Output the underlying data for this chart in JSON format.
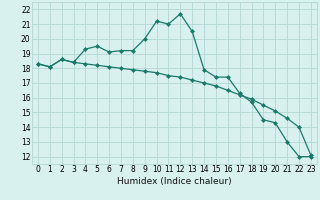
{
  "xlabel": "Humidex (Indice chaleur)",
  "background_color": "#d8f0ee",
  "grid_color": "#b8dbd8",
  "line_color": "#1a7a6a",
  "xlim": [
    -0.5,
    23.5
  ],
  "ylim": [
    11.5,
    22.5
  ],
  "xticks": [
    0,
    1,
    2,
    3,
    4,
    5,
    6,
    7,
    8,
    9,
    10,
    11,
    12,
    13,
    14,
    15,
    16,
    17,
    18,
    19,
    20,
    21,
    22,
    23
  ],
  "yticks": [
    12,
    13,
    14,
    15,
    16,
    17,
    18,
    19,
    20,
    21,
    22
  ],
  "line1_x": [
    0,
    1,
    2,
    3,
    4,
    5,
    6,
    7,
    8,
    9,
    10,
    11,
    12,
    13,
    14,
    15,
    16,
    17,
    18,
    19,
    20,
    21,
    22,
    23
  ],
  "line1_y": [
    18.3,
    18.1,
    18.6,
    18.4,
    19.3,
    19.5,
    19.1,
    19.2,
    19.2,
    20.0,
    21.2,
    21.0,
    21.7,
    20.5,
    17.9,
    17.4,
    17.4,
    16.3,
    15.7,
    14.5,
    14.3,
    13.0,
    12.0,
    12.0
  ],
  "line2_x": [
    0,
    1,
    2,
    3,
    4,
    5,
    6,
    7,
    8,
    9,
    10,
    11,
    12,
    13,
    14,
    15,
    16,
    17,
    18,
    19,
    20,
    21,
    22,
    23
  ],
  "line2_y": [
    18.3,
    18.1,
    18.6,
    18.4,
    18.3,
    18.2,
    18.1,
    18.0,
    17.9,
    17.8,
    17.7,
    17.5,
    17.4,
    17.2,
    17.0,
    16.8,
    16.5,
    16.2,
    15.9,
    15.5,
    15.1,
    14.6,
    14.0,
    12.1
  ],
  "xlabel_fontsize": 6.5,
  "tick_fontsize": 5.5
}
